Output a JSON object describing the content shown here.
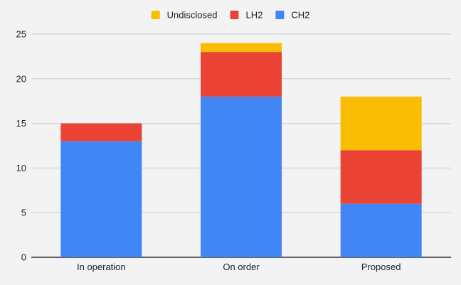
{
  "chart_data": {
    "type": "bar",
    "stacked": true,
    "categories": [
      "In operation",
      "On order",
      "Proposed"
    ],
    "series": [
      {
        "name": "CH2",
        "values": [
          13,
          18,
          6
        ],
        "color": "#4285f4"
      },
      {
        "name": "LH2",
        "values": [
          2,
          5,
          6
        ],
        "color": "#ea4335"
      },
      {
        "name": "Undisclosed",
        "values": [
          0,
          1,
          6
        ],
        "color": "#fbbc04"
      }
    ],
    "legend_order": [
      "Undisclosed",
      "LH2",
      "CH2"
    ],
    "legend_position": "top",
    "title": "",
    "xlabel": "",
    "ylabel": "",
    "ylim": [
      0,
      25
    ],
    "yticks": [
      0,
      5,
      10,
      15,
      20,
      25
    ],
    "grid": true
  }
}
